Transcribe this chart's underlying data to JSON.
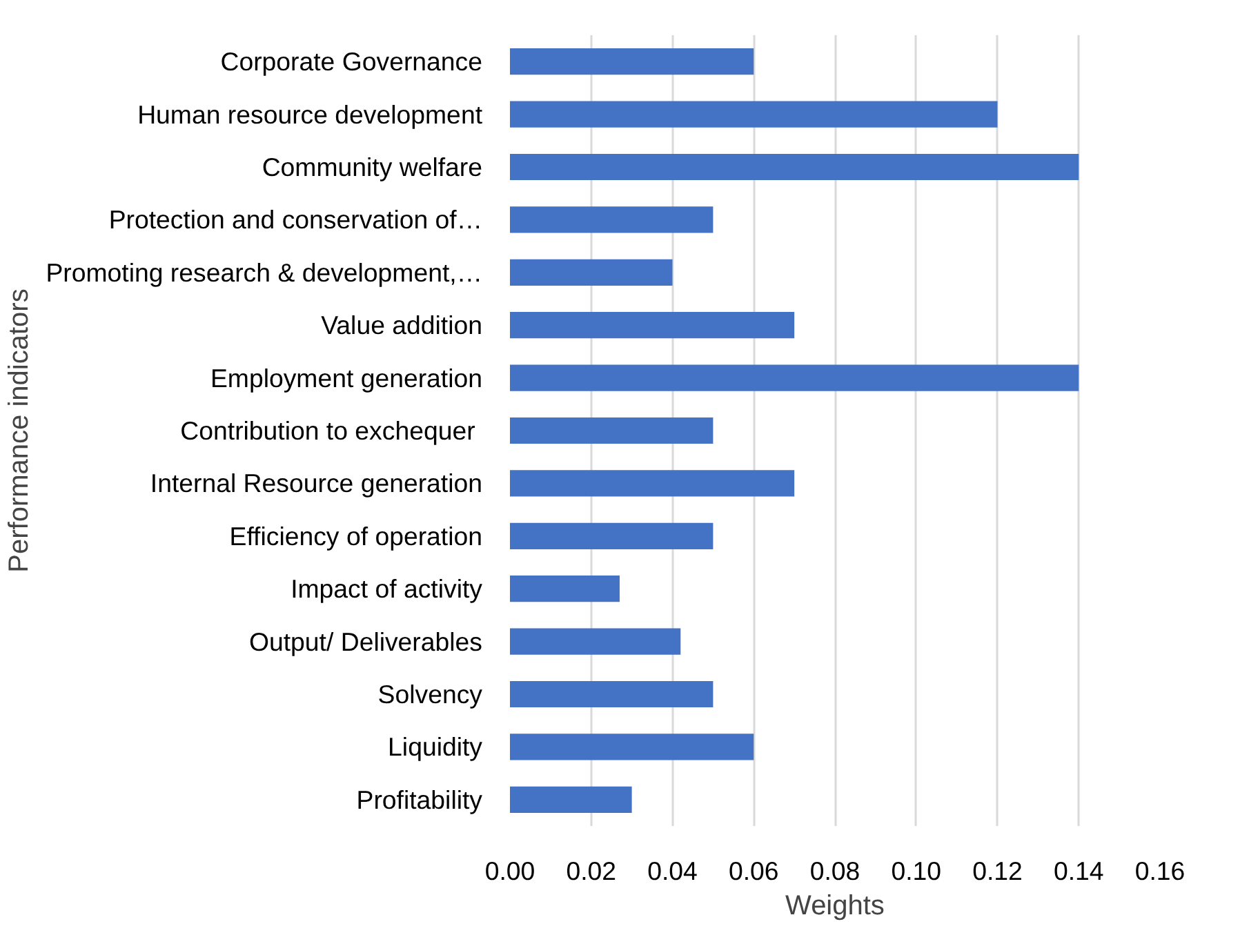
{
  "chart_data": {
    "type": "bar",
    "orientation": "horizontal",
    "xlabel": "Weights",
    "ylabel": "Performance indicators",
    "categories": [
      "Corporate Governance",
      "Human resource development",
      "Community welfare",
      "Protection and conservation of…",
      "Promoting research & development,…",
      "Value addition",
      "Employment generation",
      "Contribution to  exchequer",
      "Internal Resource generation",
      "Efficiency of operation",
      "Impact of activity",
      "Output/ Deliverables",
      "Solvency",
      "Liquidity",
      "Profitability"
    ],
    "values": [
      0.06,
      0.12,
      0.14,
      0.05,
      0.04,
      0.07,
      0.14,
      0.05,
      0.07,
      0.05,
      0.027,
      0.042,
      0.05,
      0.06,
      0.03
    ],
    "color": "#4472c4",
    "xlim": [
      0,
      0.16
    ],
    "xticks": [
      {
        "value": 0,
        "label": "0.00"
      },
      {
        "value": 0.02,
        "label": "0.02"
      },
      {
        "value": 0.04,
        "label": "0.04"
      },
      {
        "value": 0.06,
        "label": "0.06"
      },
      {
        "value": 0.08,
        "label": "0.08"
      },
      {
        "value": 0.1,
        "label": "0.10"
      },
      {
        "value": 0.12,
        "label": "0.12"
      },
      {
        "value": 0.14,
        "label": "0.14"
      },
      {
        "value": 0.16,
        "label": "0.16"
      }
    ],
    "grid": "x"
  }
}
